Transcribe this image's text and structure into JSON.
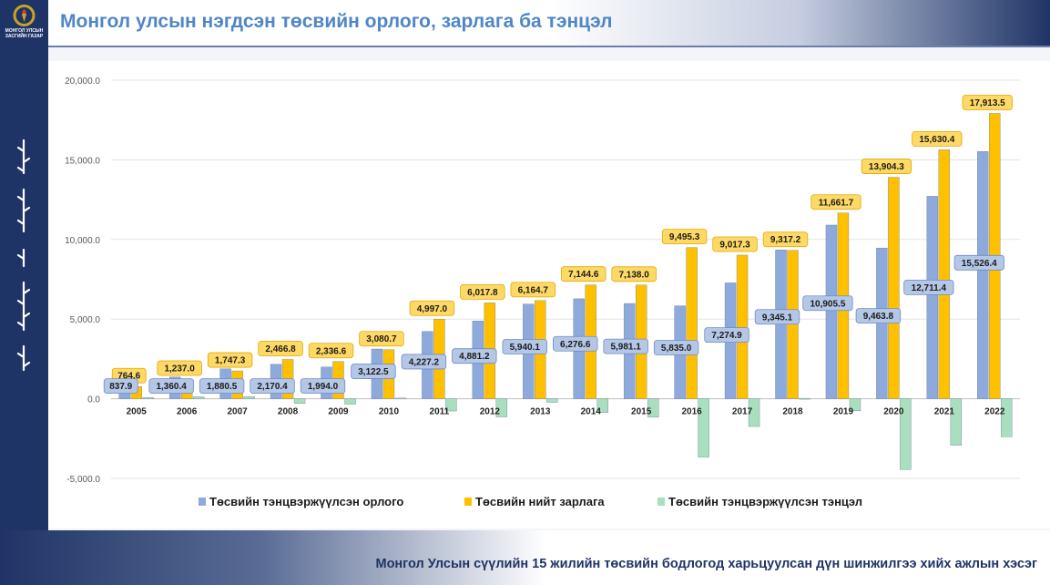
{
  "header": {
    "title": "Монгол улсын нэгдсэн төсвийн орлого, зарлага ба тэнцэл"
  },
  "sidebar": {
    "org_name_line1": "МОНГОЛ УЛСЫН",
    "org_name_line2": "ЗАСГИЙН ГАЗАР"
  },
  "footer": {
    "text": "Монгол Улсын сүүлийн 15 жилийн төсвийн бодлогод харьцуулсан дүн шинжилгээ хийх ажлын хэсэг"
  },
  "colors": {
    "revenue": "#8ea9db",
    "expenditure": "#ffc000",
    "balance": "#a9dfbf",
    "navy": "#1f3466",
    "title": "#4f86c6"
  },
  "chart_data": {
    "type": "bar",
    "categories": [
      "2005",
      "2006",
      "2007",
      "2008",
      "2009",
      "2010",
      "2011",
      "2012",
      "2013",
      "2014",
      "2015",
      "2016",
      "2017",
      "2018",
      "2019",
      "2020",
      "2021",
      "2022"
    ],
    "series": [
      {
        "name": "Төсвийн тэнцвэржүүлсэн орлого",
        "values": [
          837.9,
          1360.4,
          1880.5,
          2170.4,
          1994.0,
          3122.5,
          4227.2,
          4881.2,
          5940.1,
          6276.6,
          5981.1,
          5835.0,
          7274.9,
          9345.1,
          10905.5,
          9463.8,
          12711.4,
          15526.4
        ],
        "labels": [
          "837.9",
          "1,360.4",
          "1,880.5",
          "2,170.4",
          "1,994.0",
          "3,122.5",
          "4,227.2",
          "4,881.2",
          "5,940.1",
          "6,276.6",
          "5,981.1",
          "5,835.0",
          "7,274.9",
          "9,345.1",
          "10,905.5",
          "9,463.8",
          "12,711.4",
          "15,526.4"
        ]
      },
      {
        "name": "Төсвийн нийт зарлага",
        "values": [
          764.6,
          1237.0,
          1747.3,
          2466.8,
          2336.6,
          3080.7,
          4997.0,
          6017.8,
          6164.7,
          7144.6,
          7138.0,
          9495.3,
          9017.3,
          9317.2,
          11661.7,
          13904.3,
          15630.4,
          17913.5
        ],
        "labels": [
          "764.6",
          "1,237.0",
          "1,747.3",
          "2,466.8",
          "2,336.6",
          "3,080.7",
          "4,997.0",
          "6,017.8",
          "6,164.7",
          "7,144.6",
          "7,138.0",
          "9,495.3",
          "9,017.3",
          "9,317.2",
          "11,661.7",
          "13,904.3",
          "15,630.4",
          "17,913.5"
        ]
      },
      {
        "name": "Төсвийн тэнцвэржүүлсэн тэнцэл",
        "values": [
          73.3,
          123.4,
          133.2,
          -296.4,
          -342.6,
          41.8,
          -769.8,
          -1136.6,
          -224.6,
          -868.0,
          -1156.9,
          -3660.3,
          -1742.4,
          27.9,
          -756.2,
          -4440.5,
          -2919.0,
          -2387.1
        ]
      }
    ],
    "yticks": [
      "-5,000.0",
      "0.0",
      "5,000.0",
      "10,000.0",
      "15,000.0",
      "20,000.0"
    ],
    "ylim": [
      -5000,
      20000
    ],
    "grid": true,
    "legend_position": "bottom"
  }
}
